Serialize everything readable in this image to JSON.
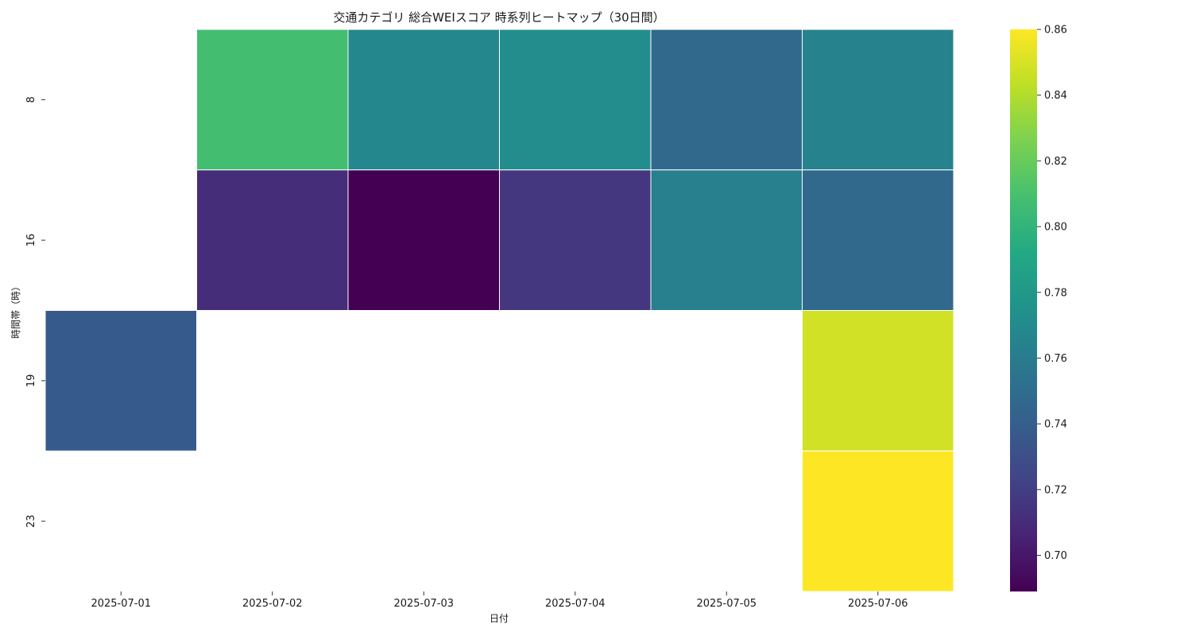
{
  "chart_data": {
    "type": "heatmap",
    "title": "交通カテゴリ 総合WEIスコア 時系列ヒートマップ（30日間）",
    "xlabel": "日付",
    "ylabel": "時間帯（時）",
    "x_categories": [
      "2025-07-01",
      "2025-07-02",
      "2025-07-03",
      "2025-07-04",
      "2025-07-05",
      "2025-07-06"
    ],
    "y_categories": [
      "8",
      "16",
      "19",
      "23"
    ],
    "values": [
      [
        null,
        0.808,
        0.768,
        0.772,
        0.747,
        0.765
      ],
      [
        null,
        0.711,
        0.689,
        0.716,
        0.762,
        0.747
      ],
      [
        0.737,
        null,
        null,
        null,
        null,
        0.848
      ],
      [
        null,
        null,
        null,
        null,
        null,
        0.86
      ]
    ],
    "colormap": "viridis",
    "colorbar": {
      "min": 0.689,
      "max": 0.86,
      "ticks": [
        0.7,
        0.72,
        0.74,
        0.76,
        0.78,
        0.8,
        0.82,
        0.84,
        0.86
      ]
    },
    "grid": false,
    "cell_border_color": "#ffffff"
  }
}
